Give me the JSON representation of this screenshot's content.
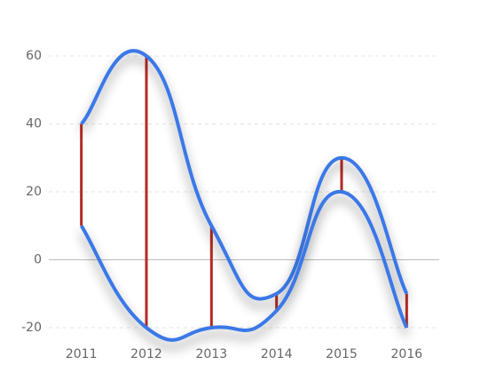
{
  "chart_data": {
    "type": "line",
    "categories": [
      "2011",
      "2012",
      "2013",
      "2014",
      "2015",
      "2016"
    ],
    "series": [
      {
        "color": "#3b78e7",
        "values": [
          40,
          60,
          10,
          -10,
          30,
          -10
        ]
      },
      {
        "color": "#3b78e7",
        "values": [
          10,
          -20,
          -20,
          -15,
          20,
          -20
        ]
      }
    ],
    "range_color": "#b52a22",
    "ylim": [
      -20,
      60
    ],
    "yticks": [
      -20,
      0,
      20,
      40,
      60
    ],
    "grid": true
  }
}
